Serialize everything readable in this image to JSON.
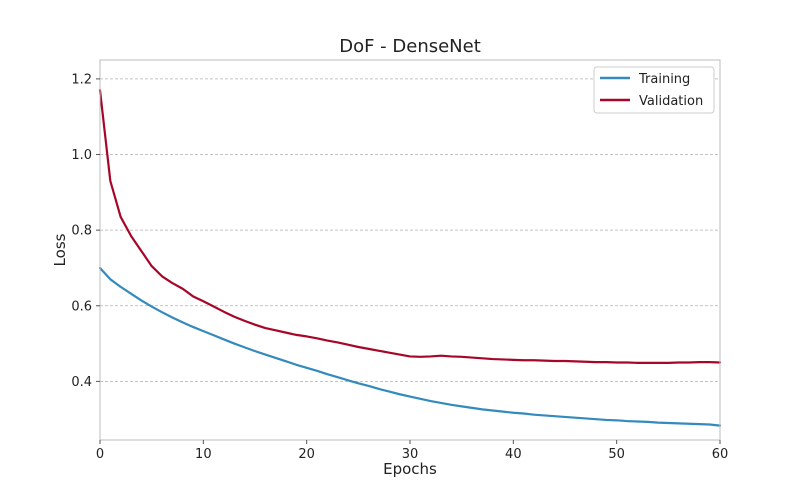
{
  "chart_data": {
    "type": "line",
    "title": "DoF - DenseNet",
    "xlabel": "Epochs",
    "ylabel": "Loss",
    "xlim": [
      0,
      60
    ],
    "ylim": [
      0.245,
      1.25
    ],
    "x_ticks": [
      0,
      10,
      20,
      30,
      40,
      50,
      60
    ],
    "y_ticks": [
      0.4,
      0.6,
      0.8,
      1.0,
      1.2
    ],
    "x_tick_labels": [
      "0",
      "10",
      "20",
      "30",
      "40",
      "50",
      "60"
    ],
    "y_tick_labels": [
      "0.4",
      "0.6",
      "0.8",
      "1.0",
      "1.2"
    ],
    "grid": "horizontal dashed",
    "legend_position": "top-right",
    "x": [
      0,
      1,
      2,
      3,
      4,
      5,
      6,
      7,
      8,
      9,
      10,
      11,
      12,
      13,
      14,
      15,
      16,
      17,
      18,
      19,
      20,
      21,
      22,
      23,
      24,
      25,
      26,
      27,
      28,
      29,
      30,
      31,
      32,
      33,
      34,
      35,
      36,
      37,
      38,
      39,
      40,
      41,
      42,
      43,
      44,
      45,
      46,
      47,
      48,
      49,
      50,
      51,
      52,
      53,
      54,
      55,
      56,
      57,
      58,
      59,
      60
    ],
    "series": [
      {
        "name": "Training",
        "color": "#348ABD",
        "values": [
          0.7,
          0.67,
          0.65,
          0.632,
          0.614,
          0.598,
          0.583,
          0.569,
          0.556,
          0.544,
          0.533,
          0.522,
          0.511,
          0.5,
          0.49,
          0.48,
          0.471,
          0.462,
          0.453,
          0.444,
          0.436,
          0.428,
          0.419,
          0.411,
          0.403,
          0.395,
          0.388,
          0.38,
          0.373,
          0.366,
          0.36,
          0.354,
          0.348,
          0.343,
          0.338,
          0.334,
          0.33,
          0.326,
          0.323,
          0.32,
          0.317,
          0.315,
          0.312,
          0.31,
          0.308,
          0.306,
          0.304,
          0.302,
          0.3,
          0.298,
          0.297,
          0.295,
          0.294,
          0.293,
          0.291,
          0.29,
          0.289,
          0.288,
          0.287,
          0.286,
          0.283
        ]
      },
      {
        "name": "Validation",
        "color": "#A60628",
        "values": [
          1.17,
          0.93,
          0.835,
          0.785,
          0.745,
          0.705,
          0.678,
          0.66,
          0.645,
          0.625,
          0.612,
          0.598,
          0.584,
          0.571,
          0.56,
          0.55,
          0.541,
          0.535,
          0.529,
          0.523,
          0.519,
          0.514,
          0.508,
          0.503,
          0.497,
          0.491,
          0.486,
          0.481,
          0.476,
          0.471,
          0.466,
          0.465,
          0.466,
          0.468,
          0.466,
          0.465,
          0.463,
          0.461,
          0.459,
          0.458,
          0.457,
          0.456,
          0.456,
          0.455,
          0.454,
          0.454,
          0.453,
          0.452,
          0.451,
          0.451,
          0.45,
          0.45,
          0.449,
          0.449,
          0.449,
          0.449,
          0.45,
          0.45,
          0.451,
          0.451,
          0.45
        ]
      }
    ]
  }
}
